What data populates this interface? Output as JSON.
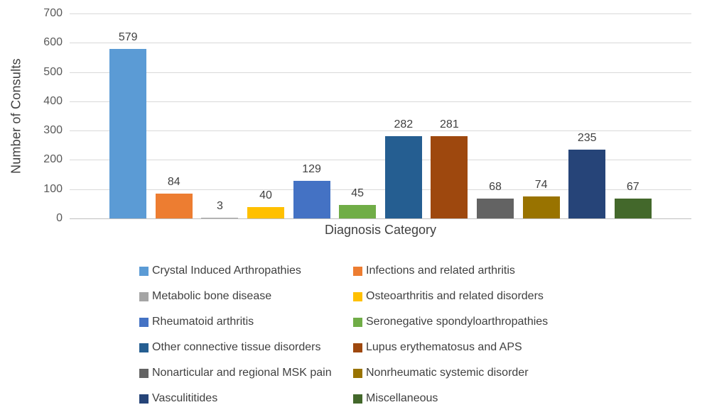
{
  "chart_data": {
    "type": "bar",
    "title": "",
    "xlabel": "Diagnosis Category",
    "ylabel": "Number of Consults",
    "ylim": [
      0,
      700
    ],
    "yticks": [
      0,
      100,
      200,
      300,
      400,
      500,
      600,
      700
    ],
    "grid": true,
    "legend_position": "bottom",
    "legend_columns": 2,
    "series": [
      {
        "name": "Crystal Induced Arthropathies",
        "value": 579,
        "color": "#5B9BD5"
      },
      {
        "name": "Infections and related arthritis",
        "value": 84,
        "color": "#ED7D31"
      },
      {
        "name": "Metabolic bone disease",
        "value": 3,
        "color": "#A5A5A5"
      },
      {
        "name": "Osteoarthritis and related disorders",
        "value": 40,
        "color": "#FFC000"
      },
      {
        "name": "Rheumatoid arthritis",
        "value": 129,
        "color": "#4472C4"
      },
      {
        "name": "Seronegative spondyloarthropathies",
        "value": 45,
        "color": "#70AD47"
      },
      {
        "name": "Other connective tissue disorders",
        "value": 282,
        "color": "#255E91"
      },
      {
        "name": "Lupus erythematosus and APS",
        "value": 281,
        "color": "#9E480E"
      },
      {
        "name": "Nonarticular and regional MSK pain",
        "value": 68,
        "color": "#636363"
      },
      {
        "name": "Nonrheumatic systemic disorder",
        "value": 74,
        "color": "#997300"
      },
      {
        "name": "Vasculititides",
        "value": 235,
        "color": "#264478"
      },
      {
        "name": "Miscellaneous",
        "value": 67,
        "color": "#43682B"
      }
    ],
    "colors": {
      "background": "#FFFFFF",
      "gridline": "#D9D9D9",
      "axis_line": "#BFBFBF",
      "tick_label": "#595959",
      "data_label": "#404040",
      "axis_title": "#404040",
      "legend_text": "#404040"
    }
  }
}
